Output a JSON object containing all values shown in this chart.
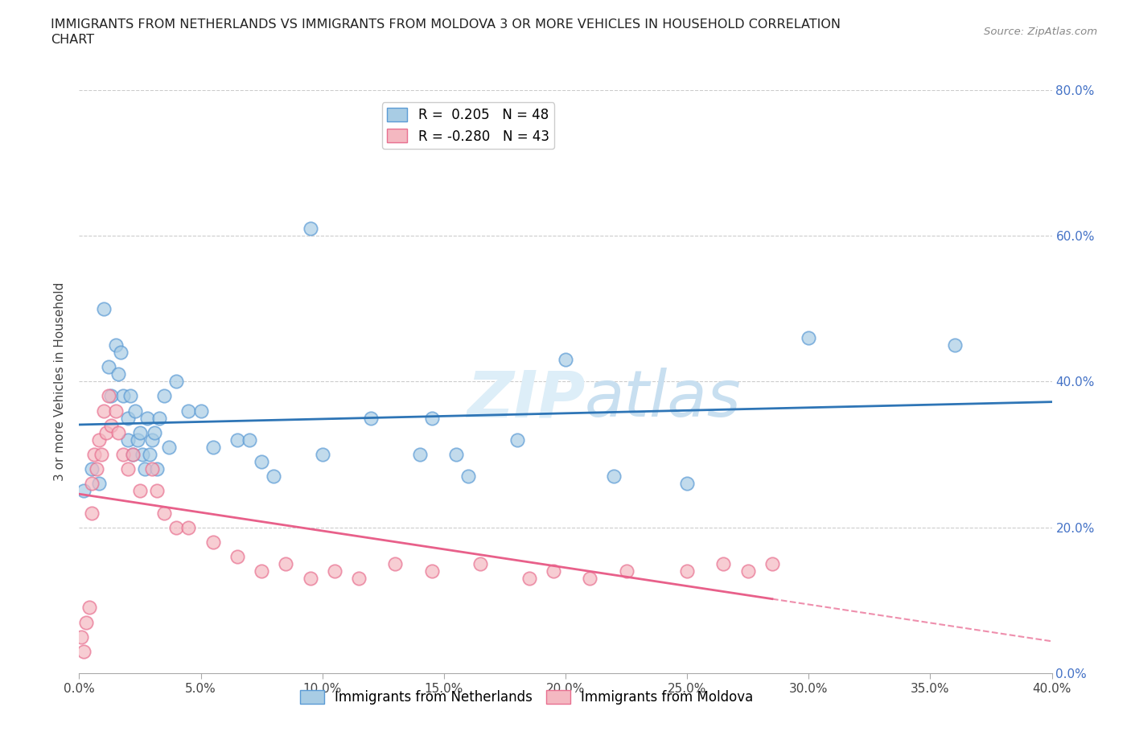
{
  "title_line1": "IMMIGRANTS FROM NETHERLANDS VS IMMIGRANTS FROM MOLDOVA 3 OR MORE VEHICLES IN HOUSEHOLD CORRELATION",
  "title_line2": "CHART",
  "source": "Source: ZipAtlas.com",
  "ylabel": "3 or more Vehicles in Household",
  "legend_netherlands": "Immigrants from Netherlands",
  "legend_moldova": "Immigrants from Moldova",
  "r_netherlands": 0.205,
  "n_netherlands": 48,
  "r_moldova": -0.28,
  "n_moldova": 43,
  "color_netherlands_fill": "#a8cce4",
  "color_netherlands_edge": "#5b9bd5",
  "color_moldova_fill": "#f4b8c1",
  "color_moldova_edge": "#e87090",
  "color_netherlands_line": "#2e75b6",
  "color_moldova_line": "#e8608a",
  "watermark_color": "#ddeef8",
  "xmin": 0.0,
  "xmax": 40.0,
  "ymin": 0.0,
  "ymax": 80.0,
  "nl_x": [
    0.2,
    0.5,
    0.8,
    1.0,
    1.2,
    1.3,
    1.5,
    1.6,
    1.7,
    1.8,
    2.0,
    2.0,
    2.1,
    2.2,
    2.3,
    2.4,
    2.5,
    2.6,
    2.7,
    2.8,
    2.9,
    3.0,
    3.1,
    3.2,
    3.3,
    3.5,
    3.7,
    4.0,
    4.5,
    5.0,
    5.5,
    6.5,
    7.0,
    7.5,
    8.0,
    9.5,
    10.0,
    12.0,
    14.0,
    14.5,
    15.5,
    16.0,
    18.0,
    20.0,
    22.0,
    25.0,
    30.0,
    36.0
  ],
  "nl_y": [
    25.0,
    28.0,
    26.0,
    50.0,
    42.0,
    38.0,
    45.0,
    41.0,
    44.0,
    38.0,
    35.0,
    32.0,
    38.0,
    30.0,
    36.0,
    32.0,
    33.0,
    30.0,
    28.0,
    35.0,
    30.0,
    32.0,
    33.0,
    28.0,
    35.0,
    38.0,
    31.0,
    40.0,
    36.0,
    36.0,
    31.0,
    32.0,
    32.0,
    29.0,
    27.0,
    61.0,
    30.0,
    35.0,
    30.0,
    35.0,
    30.0,
    27.0,
    32.0,
    43.0,
    27.0,
    26.0,
    46.0,
    45.0
  ],
  "md_x": [
    0.1,
    0.2,
    0.3,
    0.4,
    0.5,
    0.5,
    0.6,
    0.7,
    0.8,
    0.9,
    1.0,
    1.1,
    1.2,
    1.3,
    1.5,
    1.6,
    1.8,
    2.0,
    2.2,
    2.5,
    3.0,
    3.2,
    3.5,
    4.0,
    4.5,
    5.5,
    6.5,
    7.5,
    8.5,
    9.5,
    10.5,
    11.5,
    13.0,
    14.5,
    16.5,
    18.5,
    19.5,
    21.0,
    22.5,
    25.0,
    26.5,
    27.5,
    28.5
  ],
  "md_y": [
    5.0,
    3.0,
    7.0,
    9.0,
    22.0,
    26.0,
    30.0,
    28.0,
    32.0,
    30.0,
    36.0,
    33.0,
    38.0,
    34.0,
    36.0,
    33.0,
    30.0,
    28.0,
    30.0,
    25.0,
    28.0,
    25.0,
    22.0,
    20.0,
    20.0,
    18.0,
    16.0,
    14.0,
    15.0,
    13.0,
    14.0,
    13.0,
    15.0,
    14.0,
    15.0,
    13.0,
    14.0,
    13.0,
    14.0,
    14.0,
    15.0,
    14.0,
    15.0
  ]
}
